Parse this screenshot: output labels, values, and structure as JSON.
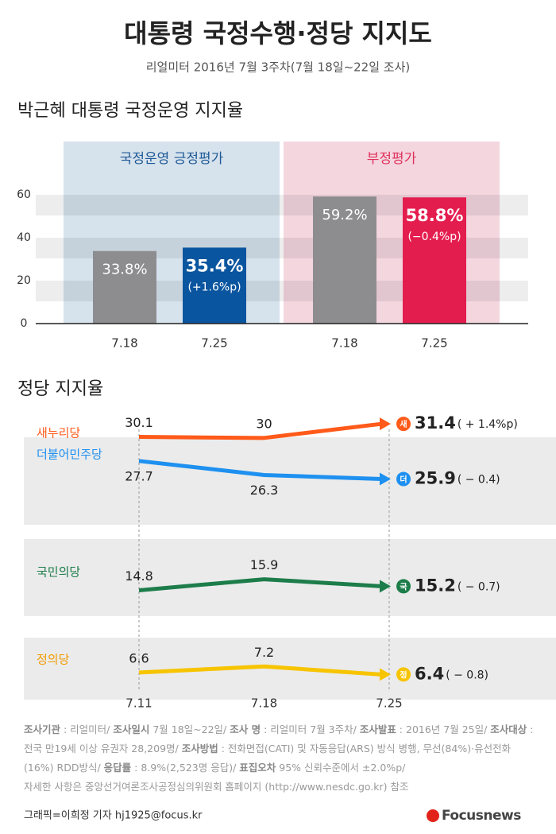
{
  "header": {
    "title": "대통령 국정수행·정당 지지도",
    "subtitle": "리얼미터 2016년 7월 3주차(7월 18일~22일 조사)"
  },
  "chart_data": [
    {
      "type": "bar",
      "title": "박근혜 대통령 국정운영 지지율",
      "ylim": [
        0,
        60
      ],
      "yticks": [
        0,
        20,
        40,
        60
      ],
      "grid": true,
      "groups": [
        {
          "name": "국정운영 긍정평가",
          "background": "#d6e2ec",
          "label_color": "#1f5a97",
          "categories": [
            "7.18",
            "7.25"
          ],
          "values": [
            33.8,
            35.4
          ],
          "value_labels": [
            "33.8%",
            "35.4%"
          ],
          "colors": [
            "#8d8d90",
            "#0a559f"
          ],
          "change_label": "(+1.6%p)"
        },
        {
          "name": "부정평가",
          "background": "#f4d6df",
          "label_color": "#e0325c",
          "categories": [
            "7.18",
            "7.25"
          ],
          "values": [
            59.2,
            58.8
          ],
          "value_labels": [
            "59.2%",
            "58.8%"
          ],
          "colors": [
            "#8d8d90",
            "#e41d4f"
          ],
          "change_label": "(−0.4%p)"
        }
      ]
    },
    {
      "type": "line",
      "title": "정당 지지율",
      "categories": [
        "7.11",
        "7.18",
        "7.25"
      ],
      "ylim": [
        5,
        33
      ],
      "series": [
        {
          "name": "새누리당",
          "badge": "새",
          "color": "#ff5a1a",
          "values": [
            30.1,
            30.0,
            31.4
          ],
          "change_label": "( + 1.4%p)"
        },
        {
          "name": "더불어민주당",
          "badge": "더",
          "color": "#1e90f0",
          "values": [
            27.7,
            26.3,
            25.9
          ],
          "change_label": "( − 0.4)"
        },
        {
          "name": "국민의당",
          "badge": "국",
          "color": "#1d7d4a",
          "values": [
            14.8,
            15.9,
            15.2
          ],
          "change_label": "( − 0.7)"
        },
        {
          "name": "정의당",
          "badge": "정",
          "color": "#f7c400",
          "name_color": "#f29b00",
          "values": [
            6.6,
            7.2,
            6.4
          ],
          "change_label": "( − 0.8)"
        }
      ]
    }
  ],
  "notes": {
    "items": [
      {
        "label": "조사기관",
        "text": " : 리얼미터/ "
      },
      {
        "label": "조사일시",
        "text": " 7월 18일~22일/ "
      },
      {
        "label": "조사 명",
        "text": " : 리얼미터 7월 3주차/ "
      },
      {
        "label": "조사발표",
        "text": " : 2016년 7월 25일/ "
      },
      {
        "label": "조사대상",
        "text": " : 전국 만19세 이상 유권자 28,209명/ "
      },
      {
        "label": "조사방법",
        "text": " : 전화면접(CATI) 및 자동응답(ARS) 방식 병행, 무선(84%)·유선전화(16%) RDD방식/ "
      },
      {
        "label": "응답률",
        "text": " : 8.9%(2,523명 응답)/ "
      },
      {
        "label": "표집오차",
        "text": " 95% 신뢰수준에서 ±2.0%p/"
      }
    ],
    "reference": "자세한 사항은 중앙선거여론조사공정심의위원회 홈페이지 (http://www.nesdc.go.kr) 참조"
  },
  "credit": "그래픽=이희정 기자 hj1925@focus.kr",
  "logo": "Focusnews"
}
